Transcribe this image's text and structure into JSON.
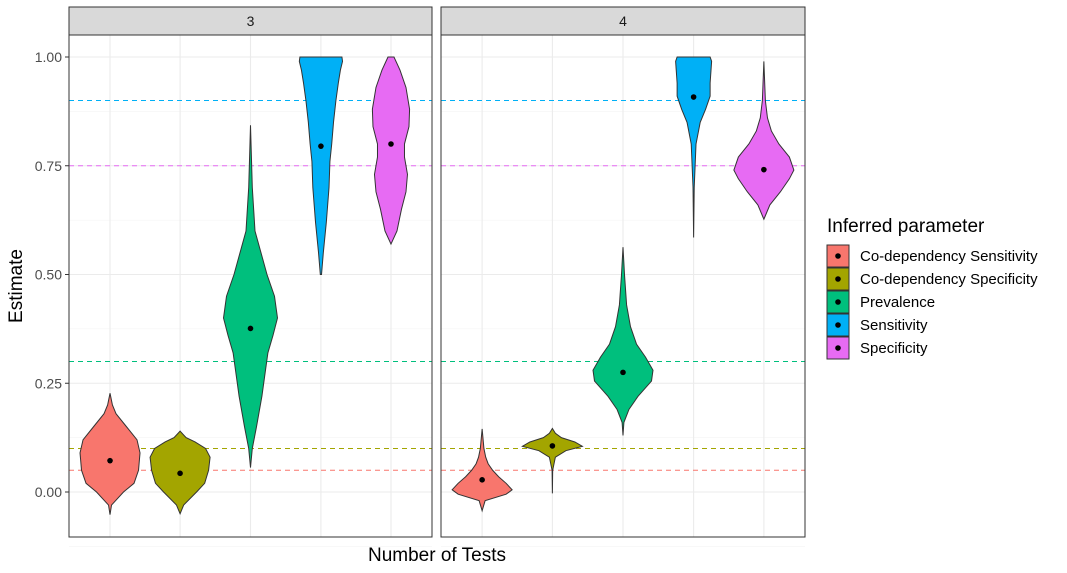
{
  "chart_data": {
    "type": "violin",
    "xlabel": "Number of Tests",
    "ylabel": "Estimate",
    "ylim": [
      -0.1,
      1.04
    ],
    "y_ticks": [
      0.0,
      0.25,
      0.5,
      0.75,
      1.0
    ],
    "y_tick_labels": [
      "0.00",
      "0.25",
      "0.50",
      "0.75",
      "1.00"
    ],
    "grid": true,
    "legend": {
      "title": "Inferred parameter",
      "placement": "right",
      "entries": [
        "Co-dependency Sensitivity",
        "Co-dependency Specificity",
        "Prevalence",
        "Sensitivity",
        "Specificity"
      ]
    },
    "colors": {
      "Co-dependency Sensitivity": "#F8766D",
      "Co-dependency Specificity": "#A3A500",
      "Prevalence": "#00BF7D",
      "Sensitivity": "#00B0F6",
      "Specificity": "#E76BF3"
    },
    "categories": [
      "Co-dependency Sensitivity",
      "Co-dependency Specificity",
      "Prevalence",
      "Sensitivity",
      "Specificity"
    ],
    "true_values": {
      "Co-dependency Sensitivity": 0.05,
      "Co-dependency Specificity": 0.1,
      "Prevalence": 0.3,
      "Sensitivity": 0.9,
      "Specificity": 0.75
    },
    "panels": [
      {
        "label": "3",
        "violins": [
          {
            "param": "Co-dependency Sensitivity",
            "median": 0.072,
            "min": -0.052,
            "max": 0.227,
            "profile": [
              [
                -0.052,
                0
              ],
              [
                -0.03,
                0.05
              ],
              [
                0.0,
                0.45
              ],
              [
                0.02,
                0.8
              ],
              [
                0.05,
                0.95
              ],
              [
                0.09,
                1.0
              ],
              [
                0.12,
                0.9
              ],
              [
                0.15,
                0.55
              ],
              [
                0.18,
                0.2
              ],
              [
                0.2,
                0.08
              ],
              [
                0.227,
                0
              ]
            ]
          },
          {
            "param": "Co-dependency Specificity",
            "median": 0.043,
            "min": -0.05,
            "max": 0.14,
            "profile": [
              [
                -0.05,
                0
              ],
              [
                -0.03,
                0.12
              ],
              [
                0.0,
                0.55
              ],
              [
                0.02,
                0.82
              ],
              [
                0.05,
                0.95
              ],
              [
                0.08,
                1.0
              ],
              [
                0.1,
                0.85
              ],
              [
                0.115,
                0.5
              ],
              [
                0.125,
                0.2
              ],
              [
                0.14,
                0
              ]
            ]
          },
          {
            "param": "Prevalence",
            "median": 0.376,
            "min": 0.056,
            "max": 0.843,
            "profile": [
              [
                0.056,
                0
              ],
              [
                0.1,
                0.06
              ],
              [
                0.15,
                0.2
              ],
              [
                0.22,
                0.38
              ],
              [
                0.28,
                0.5
              ],
              [
                0.32,
                0.58
              ],
              [
                0.36,
                0.75
              ],
              [
                0.4,
                0.9
              ],
              [
                0.45,
                0.8
              ],
              [
                0.5,
                0.55
              ],
              [
                0.55,
                0.35
              ],
              [
                0.6,
                0.15
              ],
              [
                0.7,
                0.06
              ],
              [
                0.843,
                0
              ]
            ]
          },
          {
            "param": "Sensitivity",
            "median": 0.795,
            "min": 0.5,
            "max": 1.0,
            "profile": [
              [
                0.5,
                0.02
              ],
              [
                0.55,
                0.08
              ],
              [
                0.62,
                0.18
              ],
              [
                0.7,
                0.27
              ],
              [
                0.76,
                0.3
              ],
              [
                0.8,
                0.36
              ],
              [
                0.85,
                0.42
              ],
              [
                0.9,
                0.5
              ],
              [
                0.94,
                0.58
              ],
              [
                0.97,
                0.65
              ],
              [
                0.99,
                0.72
              ],
              [
                1.0,
                0.7
              ]
            ]
          },
          {
            "param": "Specificity",
            "median": 0.8,
            "min": 0.57,
            "max": 1.0,
            "profile": [
              [
                0.57,
                0
              ],
              [
                0.6,
                0.2
              ],
              [
                0.65,
                0.35
              ],
              [
                0.69,
                0.5
              ],
              [
                0.73,
                0.55
              ],
              [
                0.77,
                0.45
              ],
              [
                0.8,
                0.45
              ],
              [
                0.84,
                0.6
              ],
              [
                0.88,
                0.62
              ],
              [
                0.93,
                0.5
              ],
              [
                0.97,
                0.3
              ],
              [
                1.0,
                0.1
              ]
            ]
          }
        ]
      },
      {
        "label": "4",
        "violins": [
          {
            "param": "Co-dependency Sensitivity",
            "median": 0.028,
            "min": -0.043,
            "max": 0.145,
            "profile": [
              [
                -0.043,
                0
              ],
              [
                -0.02,
                0.1
              ],
              [
                -0.005,
                0.8
              ],
              [
                0.005,
                1.0
              ],
              [
                0.02,
                0.8
              ],
              [
                0.035,
                0.55
              ],
              [
                0.05,
                0.35
              ],
              [
                0.065,
                0.2
              ],
              [
                0.08,
                0.12
              ],
              [
                0.1,
                0.06
              ],
              [
                0.145,
                0
              ]
            ]
          },
          {
            "param": "Co-dependency Specificity",
            "median": 0.106,
            "min": -0.003,
            "max": 0.146,
            "profile": [
              [
                -0.003,
                0
              ],
              [
                0.05,
                0.01
              ],
              [
                0.08,
                0.1
              ],
              [
                0.095,
                0.45
              ],
              [
                0.105,
                1.0
              ],
              [
                0.115,
                0.75
              ],
              [
                0.125,
                0.3
              ],
              [
                0.135,
                0.1
              ],
              [
                0.146,
                0
              ]
            ]
          },
          {
            "param": "Prevalence",
            "median": 0.275,
            "min": 0.13,
            "max": 0.563,
            "profile": [
              [
                0.13,
                0
              ],
              [
                0.16,
                0.03
              ],
              [
                0.19,
                0.2
              ],
              [
                0.22,
                0.5
              ],
              [
                0.255,
                0.95
              ],
              [
                0.28,
                1.0
              ],
              [
                0.31,
                0.75
              ],
              [
                0.34,
                0.45
              ],
              [
                0.38,
                0.25
              ],
              [
                0.43,
                0.12
              ],
              [
                0.5,
                0.05
              ],
              [
                0.563,
                0
              ]
            ]
          },
          {
            "param": "Sensitivity",
            "median": 0.908,
            "min": 0.585,
            "max": 1.0,
            "profile": [
              [
                0.585,
                0
              ],
              [
                0.7,
                0.02
              ],
              [
                0.8,
                0.08
              ],
              [
                0.85,
                0.22
              ],
              [
                0.88,
                0.4
              ],
              [
                0.91,
                0.55
              ],
              [
                0.94,
                0.55
              ],
              [
                0.97,
                0.58
              ],
              [
                0.99,
                0.6
              ],
              [
                1.0,
                0.55
              ]
            ]
          },
          {
            "param": "Specificity",
            "median": 0.741,
            "min": 0.627,
            "max": 0.99,
            "profile": [
              [
                0.627,
                0
              ],
              [
                0.66,
                0.2
              ],
              [
                0.69,
                0.55
              ],
              [
                0.72,
                0.85
              ],
              [
                0.74,
                1.0
              ],
              [
                0.77,
                0.85
              ],
              [
                0.8,
                0.5
              ],
              [
                0.83,
                0.25
              ],
              [
                0.86,
                0.12
              ],
              [
                0.9,
                0.05
              ],
              [
                0.99,
                0
              ]
            ]
          }
        ]
      }
    ]
  }
}
